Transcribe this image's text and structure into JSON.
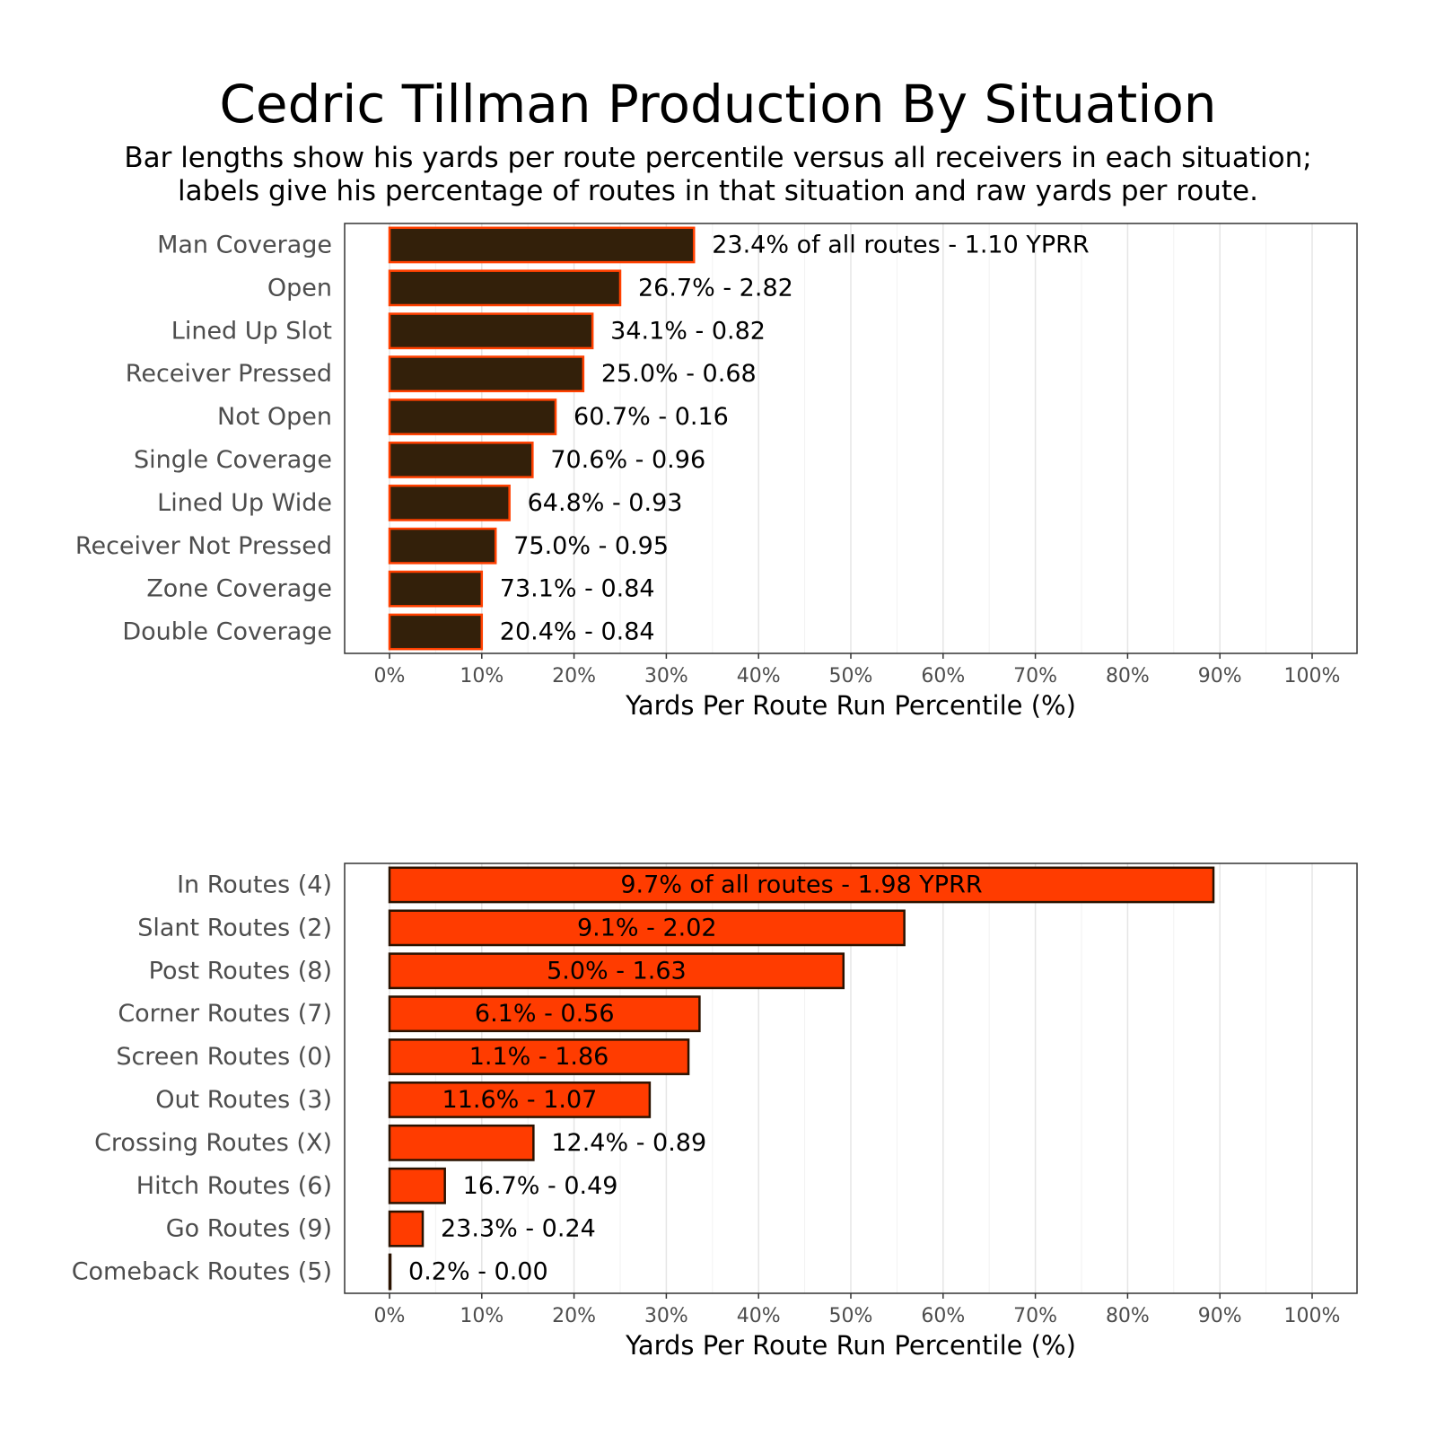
{
  "title": "Cedric Tillman Production By Situation",
  "subtitle": [
    "Bar lengths show his yards per route percentile versus all receivers in each situation;",
    "labels give his percentage of routes in that situation and raw yards per route."
  ],
  "colors": {
    "dark_bar": "#33200a",
    "dark_bar_stroke": "#ff4000",
    "orange_bar": "#ff3c00",
    "orange_bar_stroke": "#2a1200",
    "grid": "#e5e5e5",
    "panel_border": "#333333"
  },
  "chart_data": [
    {
      "type": "bar",
      "orientation": "horizontal",
      "categories": [
        "Man Coverage",
        "Open",
        "Lined Up Slot",
        "Receiver Pressed",
        "Not Open",
        "Single Coverage",
        "Lined Up Wide",
        "Receiver Not Pressed",
        "Zone Coverage",
        "Double Coverage"
      ],
      "values": [
        33,
        25,
        22,
        21,
        18,
        15.5,
        13,
        11.5,
        10,
        10
      ],
      "labels": [
        "23.4% of all routes - 1.10 YPRR",
        "26.7% - 2.82",
        "34.1% - 0.82",
        "25.0% - 0.68",
        "60.7% - 0.16",
        "70.6% - 0.96",
        "64.8% - 0.93",
        "75.0% - 0.95",
        "73.1% - 0.84",
        "20.4% - 0.84"
      ],
      "label_inside": [
        false,
        false,
        false,
        false,
        false,
        false,
        false,
        false,
        false,
        false
      ],
      "xlabel": "Yards Per Route Run Percentile (%)",
      "xlim": [
        0,
        100
      ],
      "xticks": [
        "0%",
        "10%",
        "20%",
        "30%",
        "40%",
        "50%",
        "60%",
        "70%",
        "80%",
        "90%",
        "100%"
      ],
      "grid": true,
      "bar_style": "dark"
    },
    {
      "type": "bar",
      "orientation": "horizontal",
      "categories": [
        "In Routes (4)",
        "Slant Routes (2)",
        "Post Routes (8)",
        "Corner Routes (7)",
        "Screen Routes (0)",
        "Out Routes (3)",
        "Crossing Routes (X)",
        "Hitch Routes (6)",
        "Go Routes (9)",
        "Comeback Routes (5)"
      ],
      "values": [
        89.3,
        55.8,
        49.2,
        33.6,
        32.4,
        28.2,
        15.6,
        6,
        3.6,
        0.1
      ],
      "labels": [
        "9.7% of all routes - 1.98 YPRR",
        "9.1% - 2.02",
        "5.0% - 1.63",
        "6.1% - 0.56",
        "1.1% - 1.86",
        "11.6% - 1.07",
        "12.4% - 0.89",
        "16.7% - 0.49",
        "23.3% - 0.24",
        "0.2% - 0.00"
      ],
      "label_inside": [
        true,
        true,
        true,
        true,
        true,
        true,
        false,
        false,
        false,
        false
      ],
      "xlabel": "Yards Per Route Run Percentile (%)",
      "xlim": [
        0,
        100
      ],
      "xticks": [
        "0%",
        "10%",
        "20%",
        "30%",
        "40%",
        "50%",
        "60%",
        "70%",
        "80%",
        "90%",
        "100%"
      ],
      "grid": true,
      "bar_style": "orange"
    }
  ]
}
